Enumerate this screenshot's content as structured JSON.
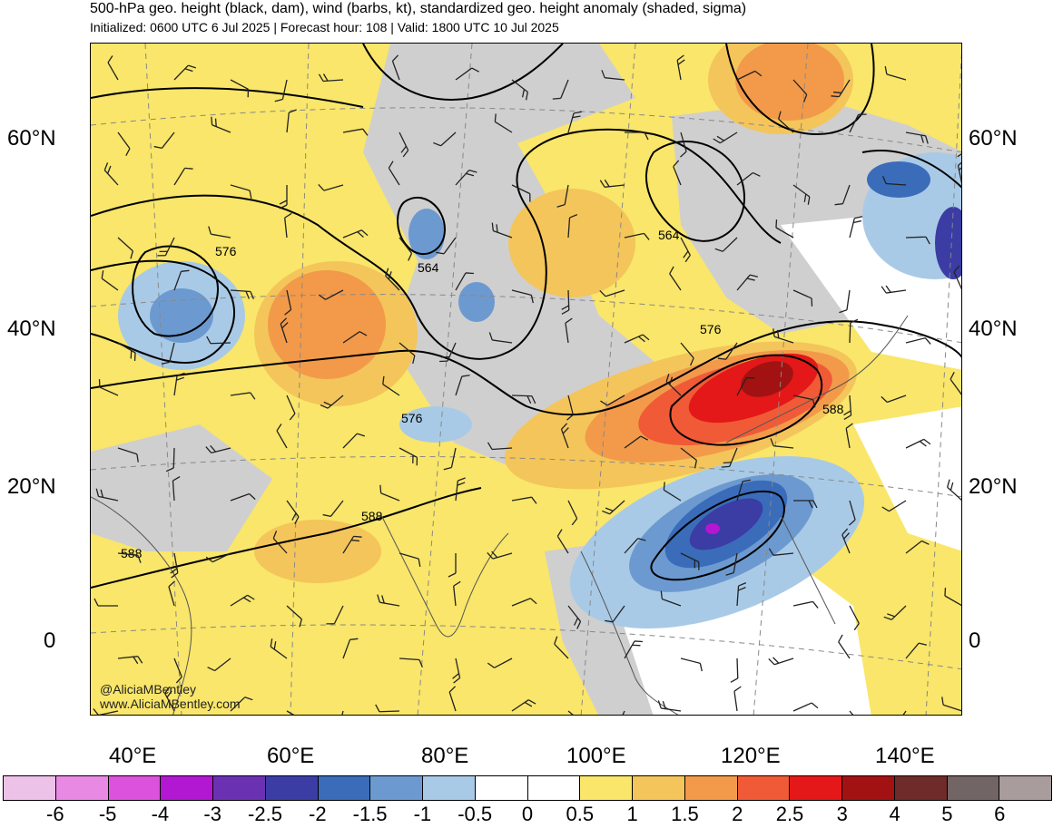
{
  "header": {
    "title": "500-hPa geo. height (black, dam), wind (barbs, kt), standardized geo. height anomaly (shaded, sigma)",
    "subtitle": "Initialized: 0600 UTC 6 Jul 2025 | Forecast hour: 108 | Valid: 1800 UTC 10 Jul 2025"
  },
  "map": {
    "lat_labels": [
      "60°N",
      "40°N",
      "20°N",
      "0"
    ],
    "lon_labels": [
      "40°E",
      "60°E",
      "80°E",
      "100°E",
      "120°E",
      "140°E"
    ],
    "contour_labels": [
      "576",
      "564",
      "564",
      "576",
      "576",
      "588",
      "588",
      "588"
    ],
    "credit_handle": "@AliciaMBentley",
    "credit_site": "www.AliciaMBentley.com"
  },
  "colorbar": {
    "labels": [
      "-6",
      "-5",
      "-4",
      "-3",
      "-2.5",
      "-2",
      "-1.5",
      "-1",
      "-0.5",
      "0",
      "0.5",
      "1",
      "1.5",
      "2",
      "2.5",
      "3",
      "4",
      "5",
      "6"
    ],
    "colors": [
      "#ecc2e8",
      "#e88ae4",
      "#dc52dc",
      "#b217d2",
      "#6a32b2",
      "#3b3ca4",
      "#3a6cba",
      "#6c9ad0",
      "#a9cae6",
      "#ffffff",
      "#ffffff",
      "#f9e66a",
      "#f4c55a",
      "#f29a4a",
      "#f05a36",
      "#e41818",
      "#a31212",
      "#6f2a2a",
      "#726565",
      "#a89c9c"
    ]
  }
}
